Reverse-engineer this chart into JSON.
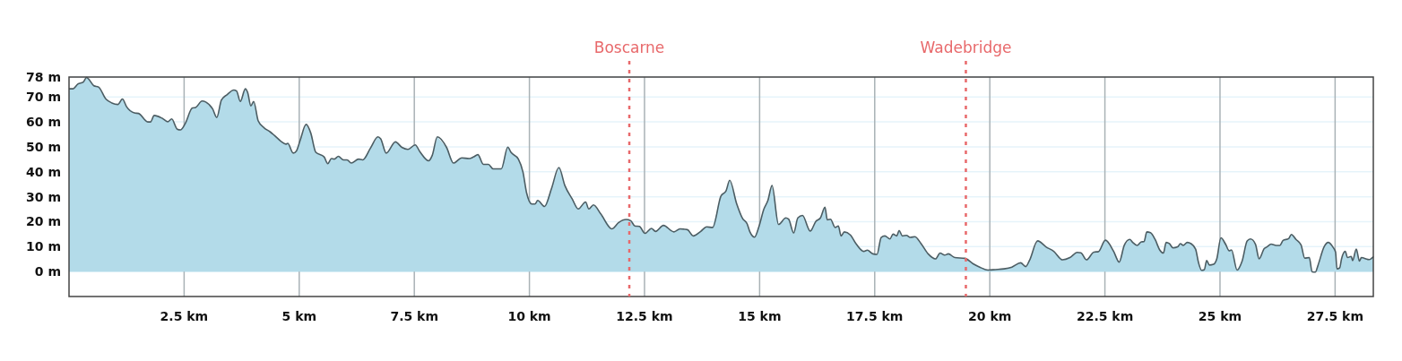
{
  "chart_data": {
    "type": "area",
    "grid": true,
    "marker": "none",
    "line_style": "solid",
    "xlim": [
      0,
      28.33
    ],
    "ylim": [
      -10,
      78
    ],
    "xticks": [
      {
        "value": 2.5,
        "label": "2.5 km"
      },
      {
        "value": 5,
        "label": "5 km"
      },
      {
        "value": 7.5,
        "label": "7.5 km"
      },
      {
        "value": 10,
        "label": "10 km"
      },
      {
        "value": 12.5,
        "label": "12.5 km"
      },
      {
        "value": 15,
        "label": "15 km"
      },
      {
        "value": 17.5,
        "label": "17.5 km"
      },
      {
        "value": 20,
        "label": "20 km"
      },
      {
        "value": 22.5,
        "label": "22.5 km"
      },
      {
        "value": 25,
        "label": "25 km"
      },
      {
        "value": 27.5,
        "label": "27.5 km"
      }
    ],
    "yticks": [
      {
        "value": 0,
        "label": "0 m"
      },
      {
        "value": 10,
        "label": "10 m"
      },
      {
        "value": 20,
        "label": "20 m"
      },
      {
        "value": 30,
        "label": "30 m"
      },
      {
        "value": 40,
        "label": "40 m"
      },
      {
        "value": 50,
        "label": "50 m"
      },
      {
        "value": 60,
        "label": "60 m"
      },
      {
        "value": 70,
        "label": "70 m"
      },
      {
        "value": 78,
        "label": "78 m"
      }
    ],
    "ref_lines": [
      {
        "axis": "x",
        "value": 12.17,
        "label": "Boscarne",
        "color": "#e8696b",
        "line_style": "dotted"
      },
      {
        "axis": "x",
        "value": 19.48,
        "label": "Wadebridge",
        "color": "#e8696b",
        "line_style": "dotted"
      }
    ],
    "series": [
      {
        "color": "#b3dbe9",
        "x": [
          0,
          0.09,
          0.19,
          0.31,
          0.38,
          0.42,
          0.54,
          0.64,
          0.8,
          0.93,
          1.06,
          1.16,
          1.25,
          1.42,
          1.51,
          1.71,
          1.77,
          1.85,
          2.03,
          2.15,
          2.23,
          2.35,
          2.42,
          2.52,
          2.68,
          2.75,
          2.89,
          2.97,
          3.12,
          3.21,
          3.31,
          3.43,
          3.58,
          3.64,
          3.72,
          3.83,
          3.88,
          3.95,
          4.01,
          4.11,
          4.24,
          4.37,
          4.46,
          4.6,
          4.71,
          4.75,
          4.87,
          4.94,
          5.02,
          5.15,
          5.25,
          5.36,
          5.54,
          5.62,
          5.7,
          5.76,
          5.85,
          5.96,
          6.04,
          6.13,
          6.29,
          6.38,
          6.55,
          6.71,
          6.77,
          6.89,
          7.09,
          7.23,
          7.36,
          7.52,
          7.62,
          7.81,
          7.89,
          8,
          8.2,
          8.35,
          8.53,
          8.69,
          8.79,
          8.88,
          9,
          9.11,
          9.21,
          9.39,
          9.53,
          9.6,
          9.76,
          9.86,
          9.94,
          10.05,
          10.12,
          10.18,
          10.33,
          10.48,
          10.64,
          10.77,
          10.93,
          11.06,
          11.22,
          11.29,
          11.39,
          11.55,
          11.79,
          11.94,
          12.1,
          12.2,
          12.29,
          12.39,
          12.51,
          12.65,
          12.74,
          12.91,
          13.14,
          13.27,
          13.43,
          13.56,
          13.72,
          13.85,
          13.98,
          14.16,
          14.27,
          14.35,
          14.5,
          14.63,
          14.73,
          14.79,
          14.89,
          14.99,
          15.09,
          15.18,
          15.27,
          15.41,
          15.57,
          15.63,
          15.74,
          15.83,
          15.93,
          16.1,
          16.22,
          16.32,
          16.42,
          16.47,
          16.54,
          16.64,
          16.71,
          16.77,
          16.84,
          16.97,
          17.1,
          17.26,
          17.34,
          17.46,
          17.55,
          17.64,
          17.72,
          17.83,
          17.9,
          17.98,
          18.03,
          18.1,
          18.19,
          18.27,
          18.37,
          18.5,
          18.66,
          18.82,
          18.92,
          19.02,
          19.1,
          19.24,
          19.46,
          19.63,
          19.79,
          19.96,
          20.12,
          20.31,
          20.48,
          20.67,
          20.78,
          20.86,
          21.04,
          21.22,
          21.39,
          21.58,
          21.74,
          21.9,
          21.98,
          22.1,
          22.26,
          22.36,
          22.51,
          22.69,
          22.81,
          22.92,
          23.04,
          23.1,
          23.2,
          23.29,
          23.35,
          23.41,
          23.49,
          23.59,
          23.69,
          23.77,
          23.83,
          23.9,
          23.98,
          24.08,
          24.14,
          24.2,
          24.29,
          24.37,
          24.47,
          24.53,
          24.6,
          24.66,
          24.71,
          24.77,
          24.86,
          24.93,
          25.02,
          25.12,
          25.2,
          25.25,
          25.37,
          25.48,
          25.59,
          25.66,
          25.77,
          25.85,
          25.96,
          26.02,
          26.11,
          26.22,
          26.3,
          26.37,
          26.49,
          26.55,
          26.65,
          26.76,
          26.84,
          26.94,
          27,
          27.07,
          27.13,
          27.26,
          27.35,
          27.45,
          27.51,
          27.54,
          27.6,
          27.64,
          27.72,
          27.77,
          27.85,
          27.88,
          27.96,
          28.03,
          28.07,
          28.24,
          28.33
        ],
        "values": [
          73.3,
          73.3,
          75.2,
          76,
          77.8,
          77.3,
          74.5,
          74,
          69.2,
          67.6,
          67,
          69.2,
          66.1,
          63.6,
          63.4,
          60,
          60,
          62.6,
          61.4,
          60.1,
          61.2,
          57.1,
          56.8,
          59.2,
          65.6,
          65.8,
          68.4,
          68,
          65.2,
          61.8,
          68.8,
          70.9,
          72.8,
          72.4,
          68.2,
          73.3,
          71.8,
          66.4,
          68.2,
          60.4,
          57.6,
          56,
          54.6,
          52.3,
          51.1,
          51.4,
          47.5,
          48.4,
          52.6,
          59,
          55.6,
          47.8,
          46,
          43.3,
          45.3,
          45.1,
          46.2,
          44.8,
          44.8,
          43.5,
          45.1,
          44.8,
          49.6,
          54,
          53.2,
          47.5,
          52,
          49.8,
          49,
          50.8,
          48.1,
          44.4,
          46.6,
          54,
          49.8,
          43.5,
          45.6,
          45.3,
          46,
          46.9,
          43,
          43,
          41.2,
          41.2,
          49.9,
          47.8,
          45.1,
          39.9,
          31.5,
          27.1,
          27.1,
          28.5,
          26.1,
          33.3,
          41.7,
          34.5,
          29.1,
          25.1,
          27.9,
          25.1,
          26.7,
          23.1,
          17.1,
          19.7,
          20.9,
          20.4,
          18.3,
          18.1,
          15.3,
          17.3,
          16.1,
          18.5,
          15.9,
          17.1,
          16.8,
          14.3,
          16.1,
          17.9,
          17.7,
          30.3,
          32.3,
          36.6,
          27.3,
          21.3,
          19.1,
          15.9,
          13.8,
          18.3,
          24.9,
          28.5,
          34.5,
          18.9,
          21.5,
          21,
          15.5,
          21.5,
          22.5,
          16.2,
          20.1,
          21.5,
          25.8,
          20.7,
          21,
          17.7,
          18.3,
          14.3,
          15.9,
          14.7,
          11,
          8.1,
          8.6,
          7.1,
          6.9,
          13.7,
          14.3,
          13.1,
          15,
          14.3,
          16.5,
          14.3,
          14.5,
          13.7,
          14,
          11.4,
          7.1,
          5.1,
          7.4,
          6.6,
          7.1,
          5.6,
          5.3,
          3.2,
          1.7,
          0.6,
          0.8,
          1.1,
          1.8,
          3.5,
          2,
          4.4,
          12.3,
          9.9,
          8.1,
          4.7,
          5.6,
          7.7,
          7.5,
          4.7,
          7.8,
          8,
          12.6,
          8.1,
          3.8,
          10.5,
          12.9,
          11.8,
          10.5,
          11.9,
          12,
          15.9,
          15.6,
          12.9,
          8.7,
          7.4,
          11.7,
          11.2,
          9.5,
          9.9,
          11.2,
          10.5,
          11.7,
          11.2,
          9,
          3.8,
          0.5,
          0.8,
          4.4,
          2.6,
          2.9,
          5.1,
          13.5,
          11,
          8.3,
          8.7,
          0.6,
          4.2,
          12.3,
          13.1,
          11,
          5.1,
          9.2,
          9.9,
          11,
          10.5,
          10.5,
          12.5,
          13.2,
          14.9,
          12.9,
          10.7,
          5.4,
          5.6,
          -0.1,
          -0.2,
          2.6,
          9.9,
          11.7,
          9.9,
          7.8,
          1.1,
          1.5,
          5.1,
          8.1,
          5.6,
          6.1,
          4.4,
          9,
          4.2,
          5.6,
          4.8,
          6
        ]
      }
    ]
  }
}
